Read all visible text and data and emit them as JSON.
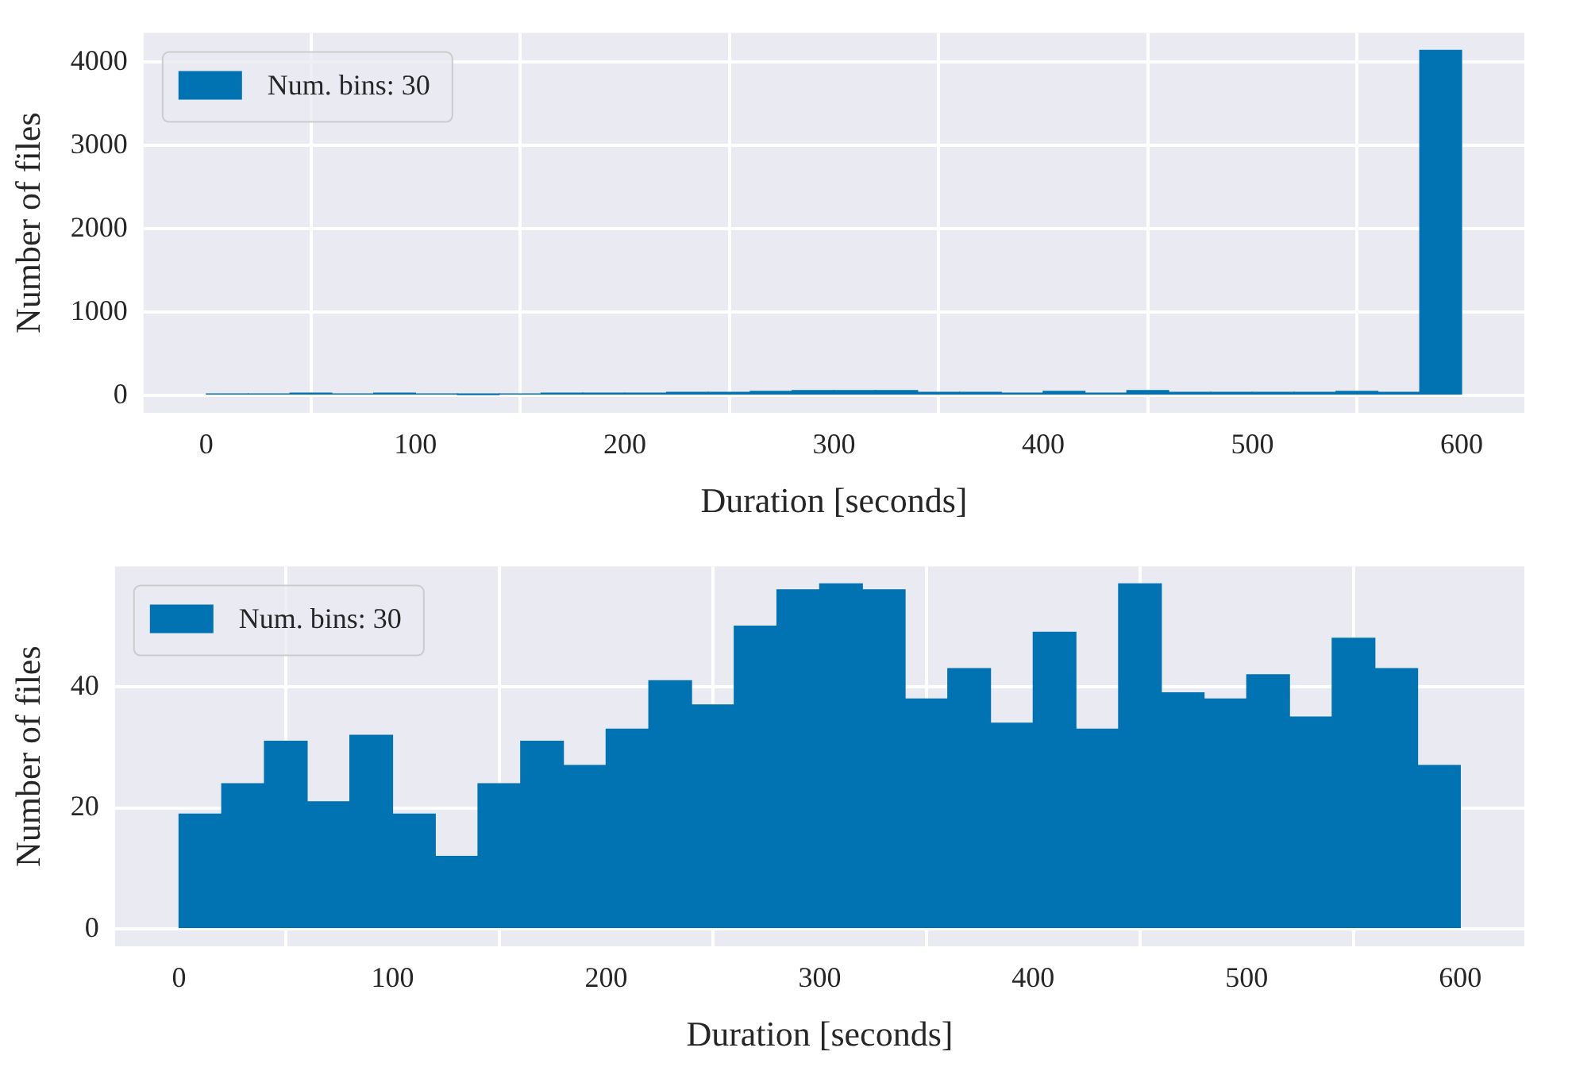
{
  "chart_data": [
    {
      "type": "histogram",
      "xlabel": "Duration [seconds]",
      "ylabel": "Number of files",
      "bins": [
        0,
        20,
        40,
        60,
        80,
        100,
        120,
        140,
        160,
        180,
        200,
        220,
        240,
        260,
        280,
        300,
        320,
        340,
        360,
        380,
        400,
        420,
        440,
        460,
        480,
        500,
        520,
        540,
        560,
        580,
        600
      ],
      "series": [
        {
          "name": "Num. bins: 30",
          "color": "#0173b2",
          "values": [
            20,
            20,
            30,
            20,
            30,
            20,
            10,
            20,
            30,
            30,
            30,
            40,
            40,
            50,
            60,
            60,
            60,
            40,
            40,
            30,
            50,
            30,
            60,
            40,
            40,
            40,
            40,
            50,
            40,
            4140
          ]
        }
      ],
      "xlim": [
        -30,
        630
      ],
      "xticks": [
        0,
        100,
        200,
        300,
        400,
        500,
        600
      ],
      "ylim": [
        -207,
        4347
      ],
      "yticks": [
        0,
        1000,
        2000,
        3000,
        4000
      ],
      "grid": true,
      "legend": "top left"
    },
    {
      "type": "histogram",
      "xlabel": "Duration [seconds]",
      "ylabel": "Number of files",
      "bins": [
        0,
        20,
        40,
        60,
        80,
        100,
        120,
        140,
        160,
        180,
        200,
        220,
        240,
        260,
        280,
        300,
        320,
        340,
        360,
        380,
        400,
        420,
        440,
        460,
        480,
        500,
        520,
        540,
        560,
        580,
        600
      ],
      "series": [
        {
          "name": "Num. bins: 30",
          "color": "#0173b2",
          "values": [
            19,
            24,
            31,
            21,
            32,
            19,
            12,
            24,
            31,
            27,
            33,
            41,
            37,
            50,
            56,
            57,
            56,
            38,
            43,
            34,
            49,
            33,
            57,
            39,
            38,
            42,
            35,
            48,
            43,
            27
          ]
        }
      ],
      "xlim": [
        -30,
        630
      ],
      "xticks": [
        0,
        100,
        200,
        300,
        400,
        500,
        600
      ],
      "ylim": [
        -2.85,
        59.85
      ],
      "yticks": [
        0,
        20,
        40
      ],
      "grid": true,
      "legend": "top left"
    }
  ]
}
